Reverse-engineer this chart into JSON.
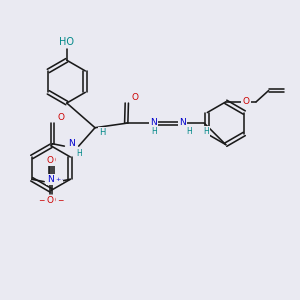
{
  "bg_color": "#eaeaf2",
  "bond_color": "#1a1a1a",
  "O_color": "#cc0000",
  "N_color": "#0000cc",
  "H_color": "#008888",
  "lw": 1.15,
  "fs": 6.5,
  "figsize": [
    3.0,
    3.0
  ],
  "dpi": 100,
  "xlim": [
    0,
    10
  ],
  "ylim": [
    0,
    10
  ]
}
